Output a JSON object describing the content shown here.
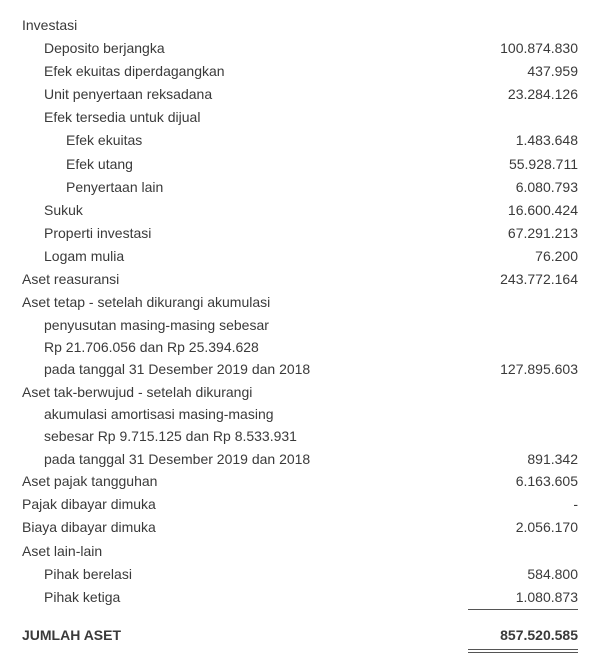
{
  "investasi": {
    "header": "Investasi",
    "deposito": {
      "label": "Deposito berjangka",
      "value": "100.874.830"
    },
    "efek_ekuitas_diperdagangkan": {
      "label": "Efek ekuitas diperdagangkan",
      "value": "437.959"
    },
    "unit_reksadana": {
      "label": "Unit penyertaan reksadana",
      "value": "23.284.126"
    },
    "efek_tersedia": {
      "header": "Efek tersedia untuk dijual",
      "efek_ekuitas": {
        "label": "Efek ekuitas",
        "value": "1.483.648"
      },
      "efek_utang": {
        "label": "Efek utang",
        "value": "55.928.711"
      },
      "penyertaan_lain": {
        "label": "Penyertaan lain",
        "value": "6.080.793"
      }
    },
    "sukuk": {
      "label": "Sukuk",
      "value": "16.600.424"
    },
    "properti_investasi": {
      "label": "Properti investasi",
      "value": "67.291.213"
    },
    "logam_mulia": {
      "label": "Logam mulia",
      "value": "76.200"
    }
  },
  "aset_reasuransi": {
    "label": "Aset reasuransi",
    "value": "243.772.164"
  },
  "aset_tetap": {
    "line1": "Aset tetap - setelah dikurangi akumulasi",
    "line2": "penyusutan masing-masing sebesar",
    "line3": "Rp 21.706.056 dan Rp 25.394.628",
    "line4": "pada tanggal 31 Desember  2019 dan 2018",
    "value": "127.895.603"
  },
  "aset_tak_berwujud": {
    "line1": "Aset tak-berwujud - setelah dikurangi",
    "line2": "akumulasi amortisasi masing-masing",
    "line3": "sebesar Rp 9.715.125 dan Rp  8.533.931",
    "line4": "pada tanggal 31 Desember 2019 dan 2018",
    "value": "891.342"
  },
  "aset_pajak_tangguhan": {
    "label": "Aset pajak tangguhan",
    "value": "6.163.605"
  },
  "pajak_dibayar_dimuka": {
    "label": "Pajak dibayar dimuka",
    "value": "-"
  },
  "biaya_dibayar_dimuka": {
    "label": "Biaya dibayar dimuka",
    "value": "2.056.170"
  },
  "aset_lain_lain": {
    "header": "Aset lain-lain",
    "pihak_berelasi": {
      "label": "Pihak berelasi",
      "value": "584.800"
    },
    "pihak_ketiga": {
      "label": "Pihak ketiga",
      "value": "1.080.873"
    }
  },
  "jumlah_aset": {
    "label": "JUMLAH ASET",
    "value": "857.520.585"
  }
}
